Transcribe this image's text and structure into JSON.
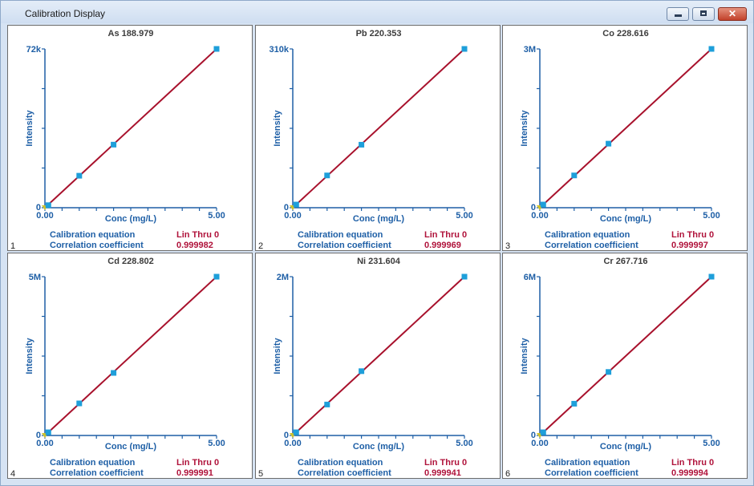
{
  "window": {
    "title": "Calibration Display",
    "controls": {
      "minimize": "minimize",
      "maximize": "maximize",
      "close": "✕"
    }
  },
  "colors": {
    "axis": "#1e5fa6",
    "axis_text": "#1e5fa6",
    "line": "#a8112c",
    "points": "#1e9fda",
    "origin": "#cfc22b",
    "value_text": "#b0133b",
    "title_text": "#3c3c3c"
  },
  "chart_data": [
    {
      "index": "1",
      "type": "line",
      "title": "As 188.979",
      "xlabel": "Conc (mg/L)",
      "ylabel": "Intensity",
      "xlim": [
        0,
        5
      ],
      "ylim": [
        0,
        72000
      ],
      "x_ticks": [
        "0.00",
        "5.00"
      ],
      "y_ticks": [
        "0",
        "72k"
      ],
      "x": [
        0,
        0.1,
        1,
        2,
        5
      ],
      "y": [
        0,
        1150,
        14500,
        28600,
        72000
      ],
      "fit": {
        "x": [
          0,
          5
        ],
        "y": [
          0,
          72000
        ]
      },
      "calibration_label": "Calibration equation",
      "calibration_equation": "Lin Thru 0",
      "correlation_label": "Correlation coefficient",
      "correlation_coefficient": "0.999982"
    },
    {
      "index": "2",
      "type": "line",
      "title": "Pb 220.353",
      "xlabel": "Conc (mg/L)",
      "ylabel": "Intensity",
      "xlim": [
        0,
        5
      ],
      "ylim": [
        0,
        310000
      ],
      "x_ticks": [
        "0.00",
        "5.00"
      ],
      "y_ticks": [
        "0",
        "310k"
      ],
      "x": [
        0,
        0.1,
        1,
        2,
        5
      ],
      "y": [
        0,
        6200,
        63000,
        123000,
        310000
      ],
      "fit": {
        "x": [
          0,
          5
        ],
        "y": [
          0,
          310000
        ]
      },
      "calibration_label": "Calibration equation",
      "calibration_equation": "Lin Thru 0",
      "correlation_label": "Correlation coefficient",
      "correlation_coefficient": "0.999969"
    },
    {
      "index": "3",
      "type": "line",
      "title": "Co 228.616",
      "xlabel": "Conc (mg/L)",
      "ylabel": "Intensity",
      "xlim": [
        0,
        5
      ],
      "ylim": [
        0,
        3000000
      ],
      "x_ticks": [
        "0.00",
        "5.00"
      ],
      "y_ticks": [
        "0",
        "3M"
      ],
      "x": [
        0,
        0.1,
        1,
        2,
        5
      ],
      "y": [
        0,
        60000,
        610000,
        1210000,
        3000000
      ],
      "fit": {
        "x": [
          0,
          5
        ],
        "y": [
          0,
          3000000
        ]
      },
      "calibration_label": "Calibration equation",
      "calibration_equation": "Lin Thru 0",
      "correlation_label": "Correlation coefficient",
      "correlation_coefficient": "0.999997"
    },
    {
      "index": "4",
      "type": "line",
      "title": "Cd 228.802",
      "xlabel": "Conc (mg/L)",
      "ylabel": "Intensity",
      "xlim": [
        0,
        5
      ],
      "ylim": [
        0,
        5000000
      ],
      "x_ticks": [
        "0.00",
        "5.00"
      ],
      "y_ticks": [
        "0",
        "5M"
      ],
      "x": [
        0,
        0.1,
        1,
        2,
        5
      ],
      "y": [
        0,
        100000,
        1010000,
        1970000,
        5000000
      ],
      "fit": {
        "x": [
          0,
          5
        ],
        "y": [
          0,
          5000000
        ]
      },
      "calibration_label": "Calibration equation",
      "calibration_equation": "Lin Thru 0",
      "correlation_label": "Correlation coefficient",
      "correlation_coefficient": "0.999991"
    },
    {
      "index": "5",
      "type": "line",
      "title": "Ni 231.604",
      "xlabel": "Conc (mg/L)",
      "ylabel": "Intensity",
      "xlim": [
        0,
        5
      ],
      "ylim": [
        0,
        2000000
      ],
      "x_ticks": [
        "0.00",
        "5.00"
      ],
      "y_ticks": [
        "0",
        "2M"
      ],
      "x": [
        0,
        0.1,
        1,
        2,
        5
      ],
      "y": [
        0,
        40000,
        390000,
        810000,
        2000000
      ],
      "fit": {
        "x": [
          0,
          5
        ],
        "y": [
          0,
          2000000
        ]
      },
      "calibration_label": "Calibration equation",
      "calibration_equation": "Lin Thru 0",
      "correlation_label": "Correlation coefficient",
      "correlation_coefficient": "0.999941"
    },
    {
      "index": "6",
      "type": "line",
      "title": "Cr 267.716",
      "xlabel": "Conc (mg/L)",
      "ylabel": "Intensity",
      "xlim": [
        0,
        5
      ],
      "ylim": [
        0,
        6000000
      ],
      "x_ticks": [
        "0.00",
        "5.00"
      ],
      "y_ticks": [
        "0",
        "6M"
      ],
      "x": [
        0,
        0.1,
        1,
        2,
        5
      ],
      "y": [
        0,
        120000,
        1200000,
        2400000,
        6000000
      ],
      "fit": {
        "x": [
          0,
          5
        ],
        "y": [
          0,
          6000000
        ]
      },
      "calibration_label": "Calibration equation",
      "calibration_equation": "Lin Thru 0",
      "correlation_label": "Correlation coefficient",
      "correlation_coefficient": "0.999994"
    }
  ]
}
